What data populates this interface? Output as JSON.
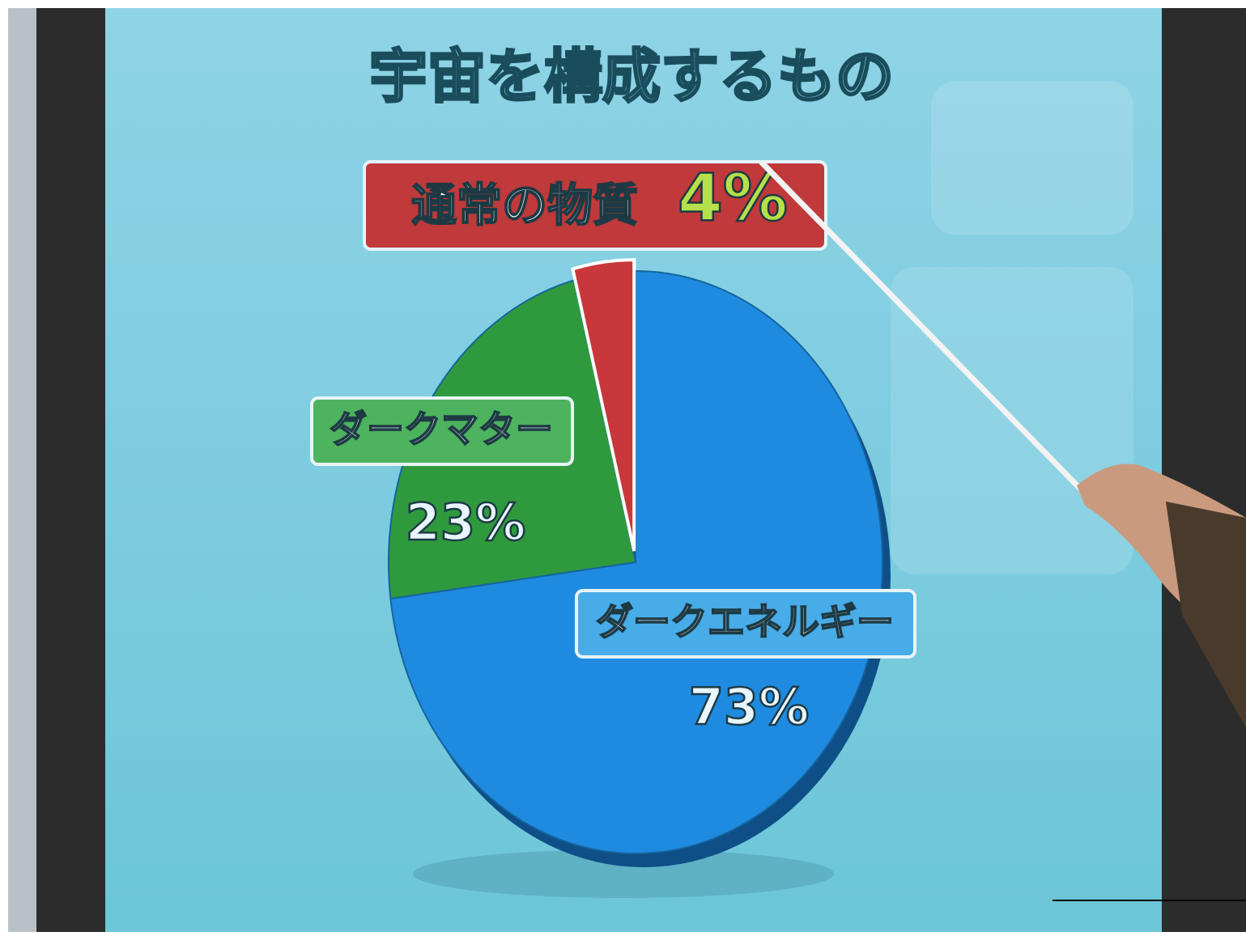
{
  "chart_data": {
    "type": "pie",
    "title": "宇宙を構成するもの",
    "categories": [
      "ダークエネルギー",
      "ダークマター",
      "通常の物質"
    ],
    "values": [
      73,
      23,
      4
    ],
    "value_labels": [
      "73%",
      "23%",
      "4%"
    ],
    "colors": [
      "#1f8be0",
      "#2f9a3d",
      "#c8383a"
    ]
  }
}
